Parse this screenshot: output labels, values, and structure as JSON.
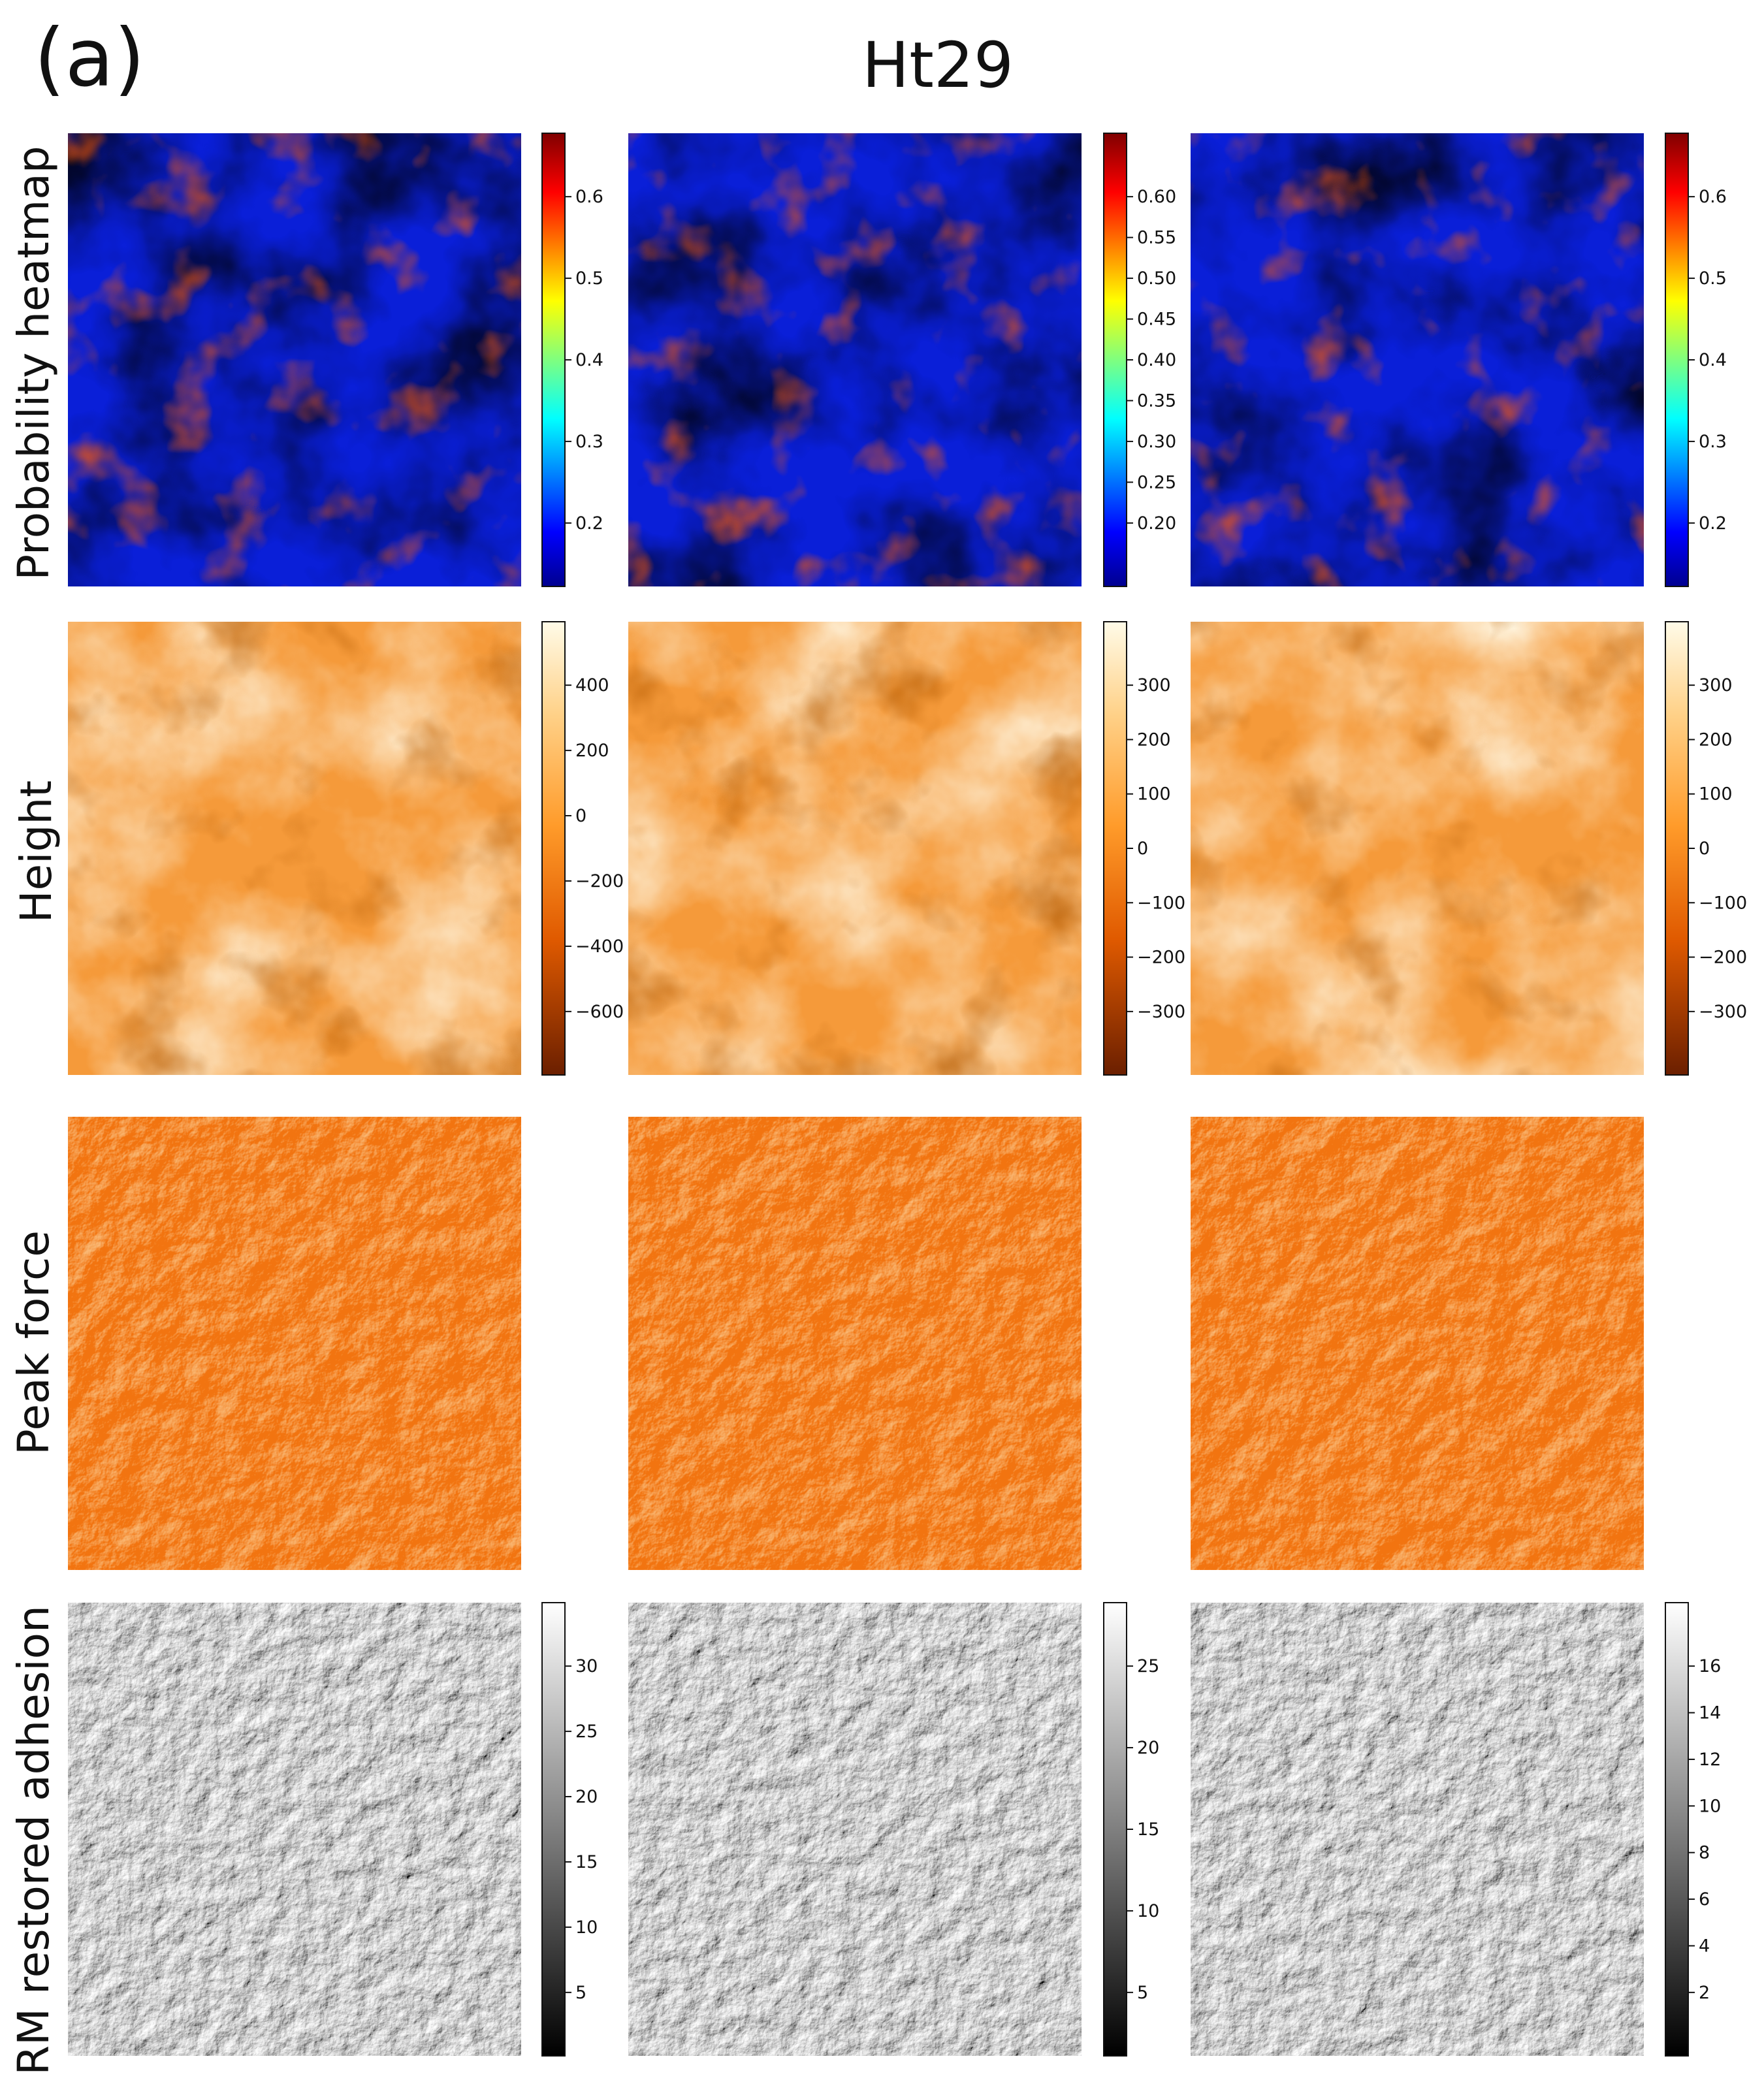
{
  "figure": {
    "panel_label": "(a)",
    "cell_line": "Ht29",
    "rows": [
      {
        "label": "Probability heatmap",
        "colormap": "jet",
        "colorbars": [
          {
            "ticks": [
              "0.2",
              "0.3",
              "0.4",
              "0.5",
              "0.6"
            ]
          },
          {
            "ticks": [
              "0.20",
              "0.25",
              "0.30",
              "0.35",
              "0.40",
              "0.45",
              "0.50",
              "0.55",
              "0.60"
            ]
          },
          {
            "ticks": [
              "0.2",
              "0.3",
              "0.4",
              "0.5",
              "0.6"
            ]
          }
        ]
      },
      {
        "label": "Height",
        "colormap": "afmhot",
        "colorbars": [
          {
            "ticks": [
              "−600",
              "−400",
              "−200",
              "0",
              "200",
              "400"
            ]
          },
          {
            "ticks": [
              "−300",
              "−200",
              "−100",
              "0",
              "100",
              "200",
              "300"
            ]
          },
          {
            "ticks": [
              "−300",
              "−200",
              "−100",
              "0",
              "100",
              "200",
              "300"
            ]
          }
        ]
      },
      {
        "label": "Peak force",
        "colormap": "orange",
        "colorbars": []
      },
      {
        "label": "RM restored adhesion",
        "colormap": "gray",
        "colorbars": [
          {
            "ticks": [
              "5",
              "10",
              "15",
              "20",
              "25",
              "30"
            ]
          },
          {
            "ticks": [
              "5",
              "10",
              "15",
              "20",
              "25"
            ]
          },
          {
            "ticks": [
              "2",
              "4",
              "6",
              "8",
              "10",
              "12",
              "14",
              "16"
            ]
          }
        ]
      }
    ]
  }
}
